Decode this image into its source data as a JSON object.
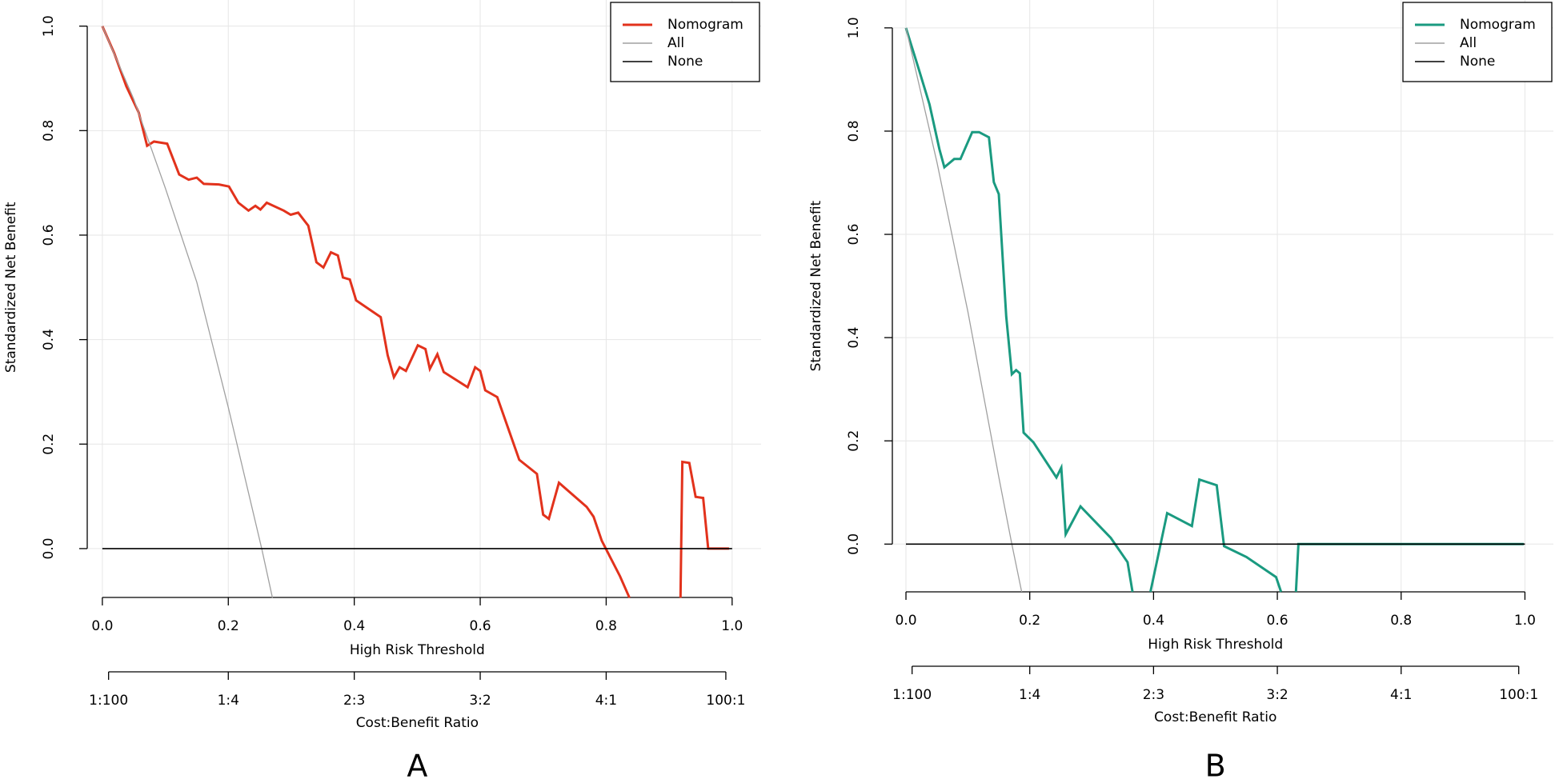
{
  "chart_data": [
    {
      "type": "line",
      "label": "A",
      "xlabel": "High Risk Threshold",
      "ylabel": "Standardized Net Benefit",
      "x2label": "Cost:Benefit Ratio",
      "xlim": [
        -0.024,
        1.046
      ],
      "ylim": [
        -0.0935,
        1.05
      ],
      "xticks": [
        {
          "value": 0,
          "label": "0.0"
        },
        0.2,
        0.4,
        0.6,
        0.8,
        {
          "value": 1,
          "label": "1.0"
        }
      ],
      "yticks": [
        {
          "value": 0,
          "label": "0.0"
        },
        0.2,
        0.4,
        0.6,
        0.8,
        {
          "value": 1,
          "label": "1.0"
        }
      ],
      "x2ticks": [
        {
          "value": 0.0099,
          "label": "1:100"
        },
        {
          "value": 0.2,
          "label": "1:4"
        },
        {
          "value": 0.4,
          "label": "2:3"
        },
        {
          "value": 0.6,
          "label": "3:2"
        },
        {
          "value": 0.8,
          "label": "4:1"
        },
        {
          "value": 0.99,
          "label": "100:1"
        }
      ],
      "grid": true,
      "legend": "top-right",
      "series": [
        {
          "name": "Nomogram",
          "color": "#e2321c",
          "x": [
            0,
            0.019,
            0.038,
            0.058,
            0.071,
            0.082,
            0.103,
            0.122,
            0.137,
            0.15,
            0.161,
            0.185,
            0.201,
            0.216,
            0.232,
            0.243,
            0.251,
            0.261,
            0.288,
            0.299,
            0.311,
            0.327,
            0.34,
            0.351,
            0.363,
            0.374,
            0.382,
            0.393,
            0.403,
            0.442,
            0.453,
            0.463,
            0.472,
            0.482,
            0.501,
            0.513,
            0.52,
            0.532,
            0.542,
            0.58,
            0.592,
            0.6,
            0.608,
            0.627,
            0.662,
            0.69,
            0.7,
            0.709,
            0.725,
            0.769,
            0.78,
            0.793,
            0.822,
            0.837,
            0.88,
            0.918,
            0.921,
            0.932,
            0.942,
            0.954,
            0.962,
            0.995
          ],
          "values": [
            1.0,
            0.948,
            0.885,
            0.834,
            0.771,
            0.779,
            0.775,
            0.716,
            0.706,
            0.71,
            0.698,
            0.697,
            0.693,
            0.662,
            0.647,
            0.656,
            0.649,
            0.662,
            0.647,
            0.639,
            0.643,
            0.618,
            0.548,
            0.538,
            0.567,
            0.561,
            0.519,
            0.515,
            0.475,
            0.443,
            0.37,
            0.328,
            0.347,
            0.34,
            0.389,
            0.382,
            0.344,
            0.372,
            0.338,
            0.309,
            0.347,
            0.34,
            0.303,
            0.29,
            0.17,
            0.143,
            0.065,
            0.057,
            0.126,
            0.08,
            0.061,
            0.015,
            -0.053,
            -0.094,
            null,
            -0.094,
            0.166,
            0.164,
            0.099,
            0.097,
            0.0,
            0.0
          ]
        },
        {
          "name": "All",
          "color": "#a0a0a0",
          "x": [
            0,
            0.05,
            0.1,
            0.15,
            0.2,
            0.253,
            0.27
          ],
          "values": [
            1.0,
            0.86,
            0.69,
            0.51,
            0.27,
            0.0,
            -0.094
          ]
        },
        {
          "name": "None",
          "color": "#000000",
          "x": [
            0,
            1
          ],
          "values": [
            0,
            0
          ]
        }
      ]
    },
    {
      "type": "line",
      "label": "B",
      "xlabel": "High Risk Threshold",
      "ylabel": "Standardized Net Benefit",
      "x2label": "Cost:Benefit Ratio",
      "xlim": [
        -0.022,
        1.046
      ],
      "ylim": [
        -0.0925,
        1.054
      ],
      "xticks": [
        {
          "value": 0,
          "label": "0.0"
        },
        0.2,
        0.4,
        0.6,
        0.8,
        {
          "value": 1,
          "label": "1.0"
        }
      ],
      "yticks": [
        {
          "value": 0,
          "label": "0.0"
        },
        0.2,
        0.4,
        0.6,
        0.8,
        {
          "value": 1,
          "label": "1.0"
        }
      ],
      "x2ticks": [
        {
          "value": 0.0099,
          "label": "1:100"
        },
        {
          "value": 0.2,
          "label": "1:4"
        },
        {
          "value": 0.4,
          "label": "2:3"
        },
        {
          "value": 0.6,
          "label": "3:2"
        },
        {
          "value": 0.8,
          "label": "4:1"
        },
        {
          "value": 0.99,
          "label": "100:1"
        }
      ],
      "grid": true,
      "legend": "top-right",
      "series": [
        {
          "name": "Nomogram",
          "color": "#1a9a80",
          "x": [
            0,
            0.022,
            0.038,
            0.054,
            0.062,
            0.078,
            0.088,
            0.107,
            0.118,
            0.134,
            0.142,
            0.15,
            0.162,
            0.171,
            0.178,
            0.184,
            0.19,
            0.206,
            0.243,
            0.251,
            0.258,
            0.282,
            0.331,
            0.358,
            0.366,
            0.38,
            0.395,
            0.422,
            0.462,
            0.474,
            0.502,
            0.514,
            0.55,
            0.598,
            0.606,
            0.618,
            0.63,
            0.634,
            0.998
          ],
          "values": [
            1.0,
            0.915,
            0.852,
            0.765,
            0.73,
            0.746,
            0.746,
            0.798,
            0.798,
            0.788,
            0.701,
            0.678,
            0.441,
            0.329,
            0.337,
            0.331,
            0.216,
            0.197,
            0.129,
            0.148,
            0.019,
            0.073,
            0.012,
            -0.035,
            -0.0925,
            null,
            -0.0925,
            0.06,
            0.035,
            0.125,
            0.114,
            -0.004,
            -0.025,
            -0.064,
            -0.0925,
            null,
            -0.0925,
            0.0,
            0.0
          ]
        },
        {
          "name": "All",
          "color": "#a0a0a0",
          "x": [
            0,
            0.05,
            0.1,
            0.15,
            0.171,
            0.187
          ],
          "values": [
            1.0,
            0.74,
            0.45,
            0.13,
            0.0,
            -0.0925
          ]
        },
        {
          "name": "None",
          "color": "#000000",
          "x": [
            0,
            1
          ],
          "values": [
            0,
            0
          ]
        }
      ]
    }
  ]
}
